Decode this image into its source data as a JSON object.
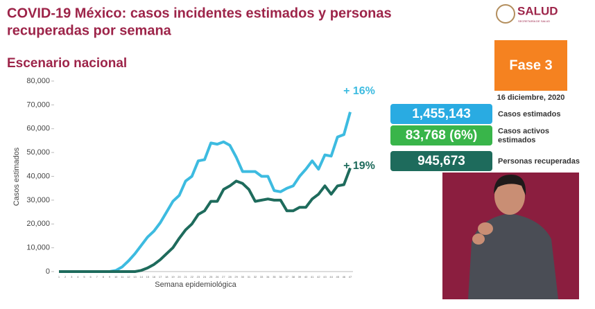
{
  "chart_data": {
    "type": "line",
    "title": [
      "COVID-19 México: casos incidentes estimados y personas",
      "recuperadas por semana"
    ],
    "subtitle": "Escenario nacional",
    "y_label": "Casos estimados",
    "x_label": "Semana epidemiológica",
    "x": [
      1,
      2,
      3,
      4,
      5,
      6,
      7,
      8,
      9,
      10,
      11,
      12,
      13,
      14,
      15,
      16,
      17,
      18,
      19,
      20,
      21,
      22,
      23,
      24,
      25,
      26,
      27,
      28,
      29,
      30,
      31,
      32,
      33,
      34,
      35,
      36,
      37,
      38,
      39,
      40,
      41,
      42,
      43,
      44,
      45,
      46,
      47
    ],
    "xlim": [
      1,
      47
    ],
    "ylim": [
      0,
      80000
    ],
    "yticks": [
      0,
      {
        "value": 10000,
        "label": "10,000"
      },
      {
        "value": 20000,
        "label": "20,000"
      },
      {
        "value": 30000,
        "label": "30,000"
      },
      {
        "value": 40000,
        "label": "40,000"
      },
      {
        "value": 50000,
        "label": "50,000"
      },
      {
        "value": 60000,
        "label": "60,000"
      },
      {
        "value": 70000,
        "label": "70,000"
      },
      {
        "value": 80000,
        "label": "80,000"
      }
    ],
    "series": [
      {
        "color": "#3dbbe0",
        "values": [
          0,
          0,
          0,
          0,
          0,
          0,
          0,
          0,
          0,
          500,
          2000,
          4500,
          7500,
          11000,
          14500,
          17000,
          20500,
          25000,
          29500,
          32000,
          38000,
          40000,
          46500,
          47000,
          54000,
          53500,
          54500,
          53000,
          48000,
          42000,
          42000,
          42000,
          40000,
          40000,
          34000,
          33500,
          35000,
          36000,
          40000,
          43000,
          46500,
          43000,
          49000,
          48500,
          56500,
          57500,
          67000
        ]
      },
      {
        "color": "#1e6b5c",
        "values": [
          0,
          0,
          0,
          0,
          0,
          0,
          0,
          0,
          0,
          0,
          0,
          0,
          0,
          500,
          1500,
          3000,
          5000,
          7500,
          10000,
          14000,
          17500,
          20000,
          24000,
          25500,
          29500,
          29500,
          34500,
          36000,
          38000,
          37000,
          34500,
          29500,
          30000,
          30500,
          30000,
          30000,
          25500,
          25500,
          27000,
          27000,
          30500,
          32500,
          36000,
          32500,
          36000,
          36500,
          43500
        ]
      }
    ],
    "annotations": [
      "+ 16%",
      "+ 19%"
    ]
  },
  "logo": {
    "name": "SALUD",
    "sub": "SECRETARÍA DE SALUD"
  },
  "phase": "Fase 3",
  "date": "16 diciembre, 2020",
  "stats": [
    {
      "value": "1,455,143",
      "label": [
        "Casos estimados"
      ]
    },
    {
      "value": "83,768 (6%)",
      "label": [
        "Casos activos",
        "estimados"
      ]
    },
    {
      "value": "945,673",
      "label": [
        "Personas recuperadas"
      ]
    }
  ]
}
